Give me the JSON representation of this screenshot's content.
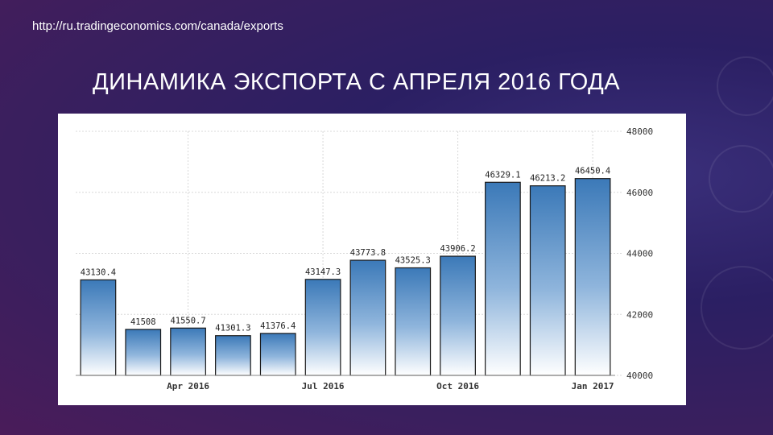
{
  "page": {
    "url": "http://ru.tradingeconomics.com/canada/exports",
    "title": "ДИНАМИКА ЭКСПОРТА С АПРЕЛЯ 2016 ГОДА"
  },
  "colors": {
    "bar_top": "#3b79b8",
    "bar_bottom": "#ffffff",
    "bar_stroke": "#1a1a1a",
    "grid": "#d8d8d8"
  },
  "chart_data": {
    "type": "bar",
    "title": "",
    "xlabel": "",
    "ylabel": "",
    "ylim": [
      40000,
      48000
    ],
    "yticks": [
      40000,
      42000,
      44000,
      46000,
      48000
    ],
    "y_axis_side": "right",
    "grid": true,
    "x_tick_labels": [
      {
        "index": 2,
        "label": "Apr 2016"
      },
      {
        "index": 5,
        "label": "Jul 2016"
      },
      {
        "index": 8,
        "label": "Oct 2016"
      },
      {
        "index": 11,
        "label": "Jan 2017"
      }
    ],
    "values": [
      43130.4,
      41508,
      41550.7,
      41301.3,
      41376.4,
      43147.3,
      43773.8,
      43525.3,
      43906.2,
      46329.1,
      46213.2,
      46450.4
    ],
    "value_labels": [
      "43130.4",
      "41508",
      "41550.7",
      "41301.3",
      "41376.4",
      "43147.3",
      "43773.8",
      "43525.3",
      "43906.2",
      "46329.1",
      "46213.2",
      "46450.4"
    ]
  }
}
